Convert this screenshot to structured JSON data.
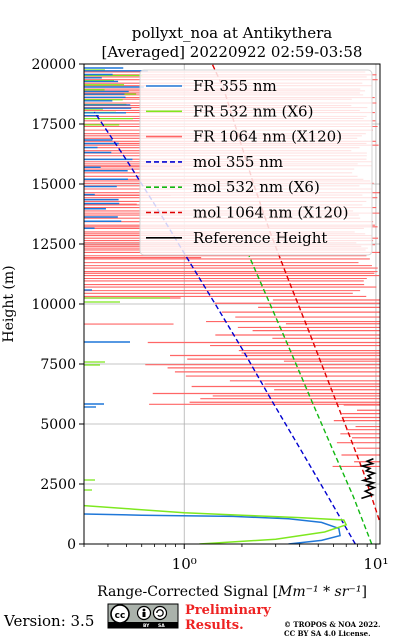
{
  "chart_data": {
    "type": "line",
    "title": [
      "pollyxt_noa at Antikythera",
      "[Averaged] 20220922 02:59-03:58"
    ],
    "ylabel": "Height (m)",
    "xlabel_prefix": "Range-Corrected Signal [",
    "xlabel_math": "Mm⁻¹ * sr⁻¹",
    "xlabel_suffix": "]",
    "x_scale": "log",
    "xlim": [
      0.3,
      10.5
    ],
    "ylim": [
      0,
      20000
    ],
    "x_ticks": [
      {
        "value": 1,
        "label": "10⁰"
      },
      {
        "value": 10,
        "label": "10¹"
      }
    ],
    "y_ticks": [
      0,
      2500,
      5000,
      7500,
      10000,
      12500,
      15000,
      17500,
      20000
    ],
    "y_tick_labels": [
      "0",
      "2500",
      "5000",
      "7500",
      "10000",
      "12500",
      "15000",
      "17500",
      "20000"
    ],
    "grid": true,
    "legend_position": "top-right",
    "legend": [
      {
        "label": "FR 355 nm",
        "color": "#1f77d8",
        "style": "solid"
      },
      {
        "label": "FR 532 nm (X6)",
        "color": "#7ee81f",
        "style": "solid"
      },
      {
        "label": "FR 1064 nm (X120)",
        "color": "#ff6666",
        "style": "solid"
      },
      {
        "label": "mol 355 nm",
        "color": "#0000d0",
        "style": "dashed"
      },
      {
        "label": "mol 532 nm (X6)",
        "color": "#11b811",
        "style": "dashed"
      },
      {
        "label": "mol 1064 nm (X120)",
        "color": "#dd0000",
        "style": "dashed"
      },
      {
        "label": "Reference Height",
        "color": "#000000",
        "style": "solid"
      }
    ],
    "series": [
      {
        "name": "mol 355 nm",
        "x": [
          7.8,
          5.6,
          4.0,
          2.85,
          2.05,
          1.45,
          1.02,
          0.72,
          0.5,
          0.34
        ],
        "y": [
          0,
          2000,
          4000,
          6000,
          8000,
          10000,
          12000,
          14000,
          16000,
          18000
        ]
      },
      {
        "name": "mol 532 nm (X6)",
        "x": [
          9.5,
          7.6,
          5.9,
          4.6,
          3.6,
          2.8,
          2.18
        ],
        "y": [
          0,
          2000,
          4000,
          6000,
          8000,
          10000,
          12000
        ]
      },
      {
        "name": "mol 1064 nm (X120)",
        "x": [
          10.4,
          8.6,
          6.9,
          5.5,
          4.4,
          3.5,
          2.8,
          2.3,
          1.92,
          1.6,
          1.4
        ],
        "y": [
          1000,
          3000,
          5000,
          7000,
          9000,
          11000,
          13000,
          15000,
          17000,
          19000,
          20000
        ]
      },
      {
        "name": "FR 355 nm",
        "x": [
          3.5,
          5.2,
          6.5,
          6.4,
          5.2,
          3.5,
          1.8,
          0.6,
          0.3
        ],
        "y": [
          0,
          150,
          350,
          650,
          900,
          1050,
          1150,
          1200,
          1250
        ]
      },
      {
        "name": "FR 532 nm (X6)",
        "x": [
          1.2,
          3.0,
          5.4,
          7.0,
          6.8,
          4.0,
          2.0,
          1.0,
          0.55,
          0.3
        ],
        "y": [
          0,
          200,
          500,
          800,
          1000,
          1100,
          1200,
          1300,
          1450,
          1600
        ]
      },
      {
        "name": "Reference Height",
        "x": [
          8.4,
          9.6,
          8.8,
          9.8,
          9.0,
          9.7,
          8.6,
          9.4,
          9.1,
          9.8,
          8.9,
          9.3,
          8.5,
          9.6,
          9.0,
          9.7
        ],
        "y": [
          1900,
          2050,
          2200,
          2350,
          2450,
          2550,
          2650,
          2750,
          2850,
          2950,
          3050,
          3150,
          3250,
          3350,
          3450,
          3550
        ]
      }
    ]
  },
  "footer": {
    "version": "Version: 3.5",
    "license_badge": "cc-by-sa-icon",
    "preliminary": [
      "Preliminary",
      "Results."
    ],
    "copyright": [
      "© TROPOS & NOA 2022.",
      "CC BY SA 4.0 License."
    ]
  },
  "colors": {
    "fr355": "#1f77d8",
    "fr532": "#7ee81f",
    "fr1064": "#ff6666",
    "mol355": "#0000d0",
    "mol532": "#11b811",
    "mol1064": "#dd0000",
    "preliminary": "#ee2222"
  }
}
